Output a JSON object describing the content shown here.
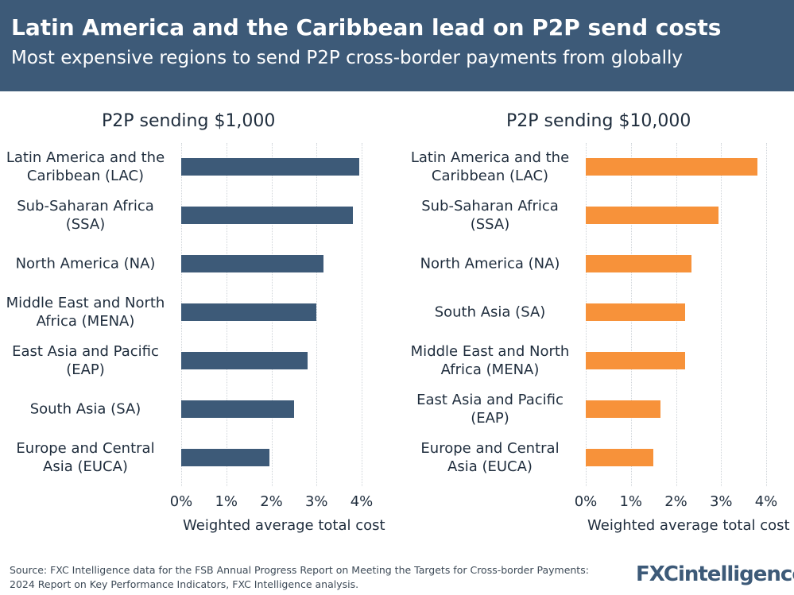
{
  "header": {
    "title": "Latin America and the Caribbean lead on P2P send costs",
    "subtitle": "Most expensive regions to send P2P cross-border payments from globally"
  },
  "chart_data": [
    {
      "type": "bar",
      "title": "P2P sending $1,000",
      "categories": [
        "Latin America and the Caribbean (LAC)",
        "Sub-Saharan Africa (SSA)",
        "North America (NA)",
        "Middle East and North Africa (MENA)",
        "East Asia and Pacific (EAP)",
        "South Asia (SA)",
        "Europe and Central Asia (EUCA)"
      ],
      "values": [
        3.95,
        3.8,
        3.15,
        3.0,
        2.8,
        2.5,
        1.95
      ],
      "color": "#3d5a78",
      "xlim": [
        0,
        4
      ],
      "xticks": [
        {
          "value": 0,
          "label": "0%"
        },
        {
          "value": 1,
          "label": "1%"
        },
        {
          "value": 2,
          "label": "2%"
        },
        {
          "value": 3,
          "label": "3%"
        },
        {
          "value": 4,
          "label": "4%"
        }
      ],
      "xlabel": "Weighted average total cost",
      "grid": true
    },
    {
      "type": "bar",
      "title": "P2P sending $10,000",
      "categories": [
        "Latin America and the Caribbean (LAC)",
        "Sub-Saharan Africa (SSA)",
        "North America (NA)",
        "South Asia (SA)",
        "Middle East and North Africa (MENA)",
        "East Asia and Pacific (EAP)",
        "Europe and Central Asia (EUCA)"
      ],
      "values": [
        3.8,
        2.95,
        2.35,
        2.2,
        2.2,
        1.65,
        1.5
      ],
      "color": "#f7923a",
      "xlim": [
        0,
        4
      ],
      "xticks": [
        {
          "value": 0,
          "label": "0%"
        },
        {
          "value": 1,
          "label": "1%"
        },
        {
          "value": 2,
          "label": "2%"
        },
        {
          "value": 3,
          "label": "3%"
        },
        {
          "value": 4,
          "label": "4%"
        }
      ],
      "xlabel": "Weighted average total cost",
      "grid": true
    }
  ],
  "footer": {
    "source": "Source: FXC Intelligence data for the FSB Annual Progress Report on Meeting the Targets for Cross-border Payments: 2024 Report on Key Performance Indicators, FXC Intelligence analysis.",
    "logo": "FXCintelligence"
  }
}
